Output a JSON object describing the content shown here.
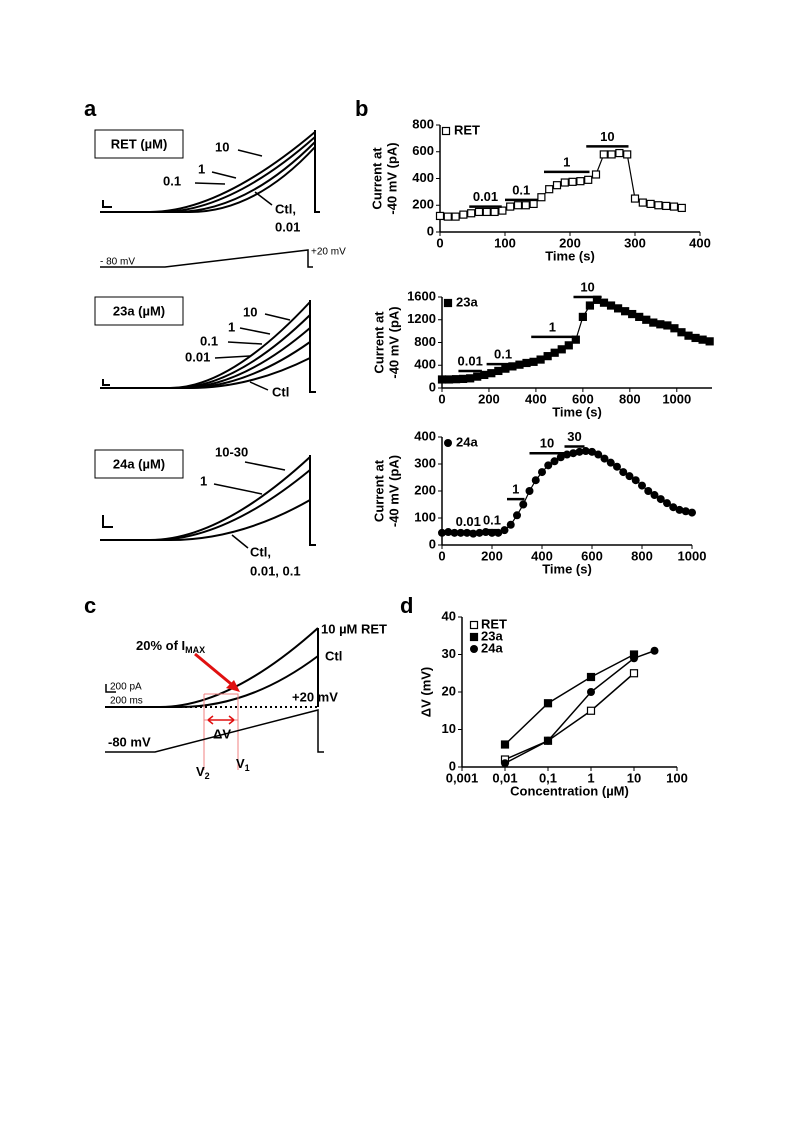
{
  "panel_labels": [
    "a",
    "b",
    "c",
    "d"
  ],
  "panel_a": {
    "groups": [
      {
        "title": "RET (µM)",
        "labels": [
          "10",
          "1",
          "0.1",
          "Ctl,",
          "0.01"
        ]
      },
      {
        "title": "23a (µM)",
        "labels": [
          "10",
          "1",
          "0.1",
          "0.01",
          "Ctl"
        ]
      },
      {
        "title": "24a (µM)",
        "labels": [
          "10-30",
          "1",
          "Ctl,",
          "0.01, 0.1"
        ]
      }
    ],
    "ramp_labels": [
      "- 80 mV",
      "+20 mV"
    ]
  },
  "panel_c": {
    "trace_top": "10 µM RET",
    "trace_ctl": "Ctl",
    "imax_pre": "20% of I",
    "imax_sub": "MAX",
    "scale_pa": "200 pA",
    "scale_ms": "200 ms",
    "dv": "ΔV",
    "v2": "V",
    "v2_sub": "2",
    "v1": "V",
    "v1_sub": "1",
    "v_start": "-80 mV",
    "v_end": "+20 mV"
  },
  "chart_data": [
    {
      "type": "line",
      "xlabel": "Time (s)",
      "ylabel": [
        "Current at",
        "-40 mV (pA)"
      ],
      "xlim": [
        0,
        400
      ],
      "xticks": [
        0,
        100,
        200,
        300,
        400
      ],
      "ylim": [
        0,
        800
      ],
      "yticks": [
        0,
        200,
        400,
        600,
        800
      ],
      "x": [
        0,
        12,
        24,
        36,
        48,
        60,
        72,
        84,
        96,
        108,
        120,
        132,
        144,
        156,
        168,
        180,
        192,
        204,
        216,
        228,
        240,
        252,
        264,
        276,
        288,
        300,
        312,
        324,
        336,
        348,
        360,
        372
      ],
      "series": [
        {
          "name": "RET",
          "marker": "square-open",
          "color": "#000000",
          "values": [
            120,
            115,
            115,
            130,
            140,
            150,
            150,
            150,
            160,
            190,
            200,
            200,
            210,
            260,
            320,
            350,
            370,
            375,
            380,
            390,
            430,
            580,
            580,
            590,
            580,
            250,
            220,
            210,
            200,
            195,
            190,
            180
          ]
        }
      ],
      "annotations": [
        {
          "text": "0.01",
          "x": [
            45,
            95
          ],
          "y": 190
        },
        {
          "text": "0.1",
          "x": [
            100,
            150
          ],
          "y": 240
        },
        {
          "text": "1",
          "x": [
            160,
            230
          ],
          "y": 450
        },
        {
          "text": "10",
          "x": [
            225,
            290
          ],
          "y": 640
        }
      ]
    },
    {
      "type": "line",
      "xlabel": "Time (s)",
      "ylabel": [
        "Current at",
        "-40 mV (pA)"
      ],
      "xlim": [
        0,
        1150
      ],
      "xticks": [
        0,
        200,
        400,
        600,
        800,
        1000
      ],
      "ylim": [
        0,
        1600
      ],
      "yticks": [
        0,
        400,
        800,
        1200,
        1600
      ],
      "x": [
        0,
        30,
        60,
        90,
        120,
        150,
        180,
        210,
        240,
        270,
        300,
        330,
        360,
        390,
        420,
        450,
        480,
        510,
        540,
        570,
        600,
        630,
        660,
        690,
        720,
        750,
        780,
        810,
        840,
        870,
        900,
        930,
        960,
        990,
        1020,
        1050,
        1080,
        1110,
        1140
      ],
      "series": [
        {
          "name": "23a",
          "marker": "square",
          "color": "#000000",
          "values": [
            150,
            150,
            155,
            160,
            170,
            200,
            230,
            260,
            300,
            340,
            380,
            410,
            440,
            460,
            500,
            560,
            620,
            680,
            750,
            850,
            1250,
            1450,
            1550,
            1500,
            1450,
            1400,
            1350,
            1300,
            1250,
            1200,
            1150,
            1120,
            1100,
            1050,
            980,
            920,
            880,
            850,
            820
          ]
        }
      ],
      "annotations": [
        {
          "text": "0.01",
          "x": [
            70,
            170
          ],
          "y": 300
        },
        {
          "text": "0.1",
          "x": [
            190,
            330
          ],
          "y": 420
        },
        {
          "text": "1",
          "x": [
            380,
            560
          ],
          "y": 900
        },
        {
          "text": "10",
          "x": [
            560,
            680
          ],
          "y": 1600
        }
      ]
    },
    {
      "type": "line",
      "xlabel": "Time (s)",
      "ylabel": [
        "Current at",
        "-40 mV (pA)"
      ],
      "xlim": [
        0,
        1000
      ],
      "xticks": [
        0,
        200,
        400,
        600,
        800,
        1000
      ],
      "ylim": [
        0,
        400
      ],
      "yticks": [
        0,
        100,
        200,
        300,
        400
      ],
      "x": [
        0,
        25,
        50,
        75,
        100,
        125,
        150,
        175,
        200,
        225,
        250,
        275,
        300,
        325,
        350,
        375,
        400,
        425,
        450,
        475,
        500,
        525,
        550,
        575,
        600,
        625,
        650,
        675,
        700,
        725,
        750,
        775,
        800,
        825,
        850,
        875,
        900,
        925,
        950,
        975,
        1000
      ],
      "series": [
        {
          "name": "24a",
          "marker": "circle",
          "color": "#000000",
          "values": [
            45,
            48,
            45,
            45,
            45,
            42,
            45,
            48,
            45,
            45,
            55,
            75,
            110,
            150,
            200,
            240,
            270,
            295,
            310,
            325,
            335,
            340,
            345,
            348,
            345,
            335,
            320,
            305,
            290,
            270,
            255,
            240,
            220,
            200,
            185,
            170,
            155,
            140,
            130,
            125,
            120
          ]
        }
      ],
      "annotations": [
        {
          "text": "0.01",
          "x": [
            80,
            130
          ],
          "y": 50
        },
        {
          "text": "0.1",
          "x": [
            170,
            230
          ],
          "y": 55
        },
        {
          "text": "1",
          "x": [
            260,
            330
          ],
          "y": 170
        },
        {
          "text": "10",
          "x": [
            350,
            490
          ],
          "y": 340
        },
        {
          "text": "30",
          "x": [
            490,
            570
          ],
          "y": 365
        }
      ]
    },
    {
      "type": "scatter",
      "xlabel": "Concentration (µM)",
      "ylabel": "ΔV (mV)",
      "xscale": "log",
      "xlim": [
        0.001,
        100
      ],
      "xticks": [
        {
          "value": 0.001,
          "label": "0,001"
        },
        {
          "value": 0.01,
          "label": "0,01"
        },
        {
          "value": 0.1,
          "label": "0,1"
        },
        1,
        10,
        100
      ],
      "ylim": [
        0,
        40
      ],
      "yticks": [
        0,
        10,
        20,
        30,
        40
      ],
      "series": [
        {
          "name": "RET",
          "marker": "square-open",
          "color": "#000000",
          "x": [
            0.01,
            0.1,
            1,
            10
          ],
          "values": [
            2,
            7,
            15,
            25
          ]
        },
        {
          "name": "23a",
          "marker": "square",
          "color": "#000000",
          "x": [
            0.01,
            0.1,
            1,
            10
          ],
          "values": [
            6,
            17,
            24,
            30
          ]
        },
        {
          "name": "24a",
          "marker": "circle",
          "color": "#000000",
          "x": [
            0.01,
            0.1,
            1,
            10,
            30
          ],
          "values": [
            1,
            7,
            20,
            29,
            31
          ]
        }
      ]
    }
  ]
}
